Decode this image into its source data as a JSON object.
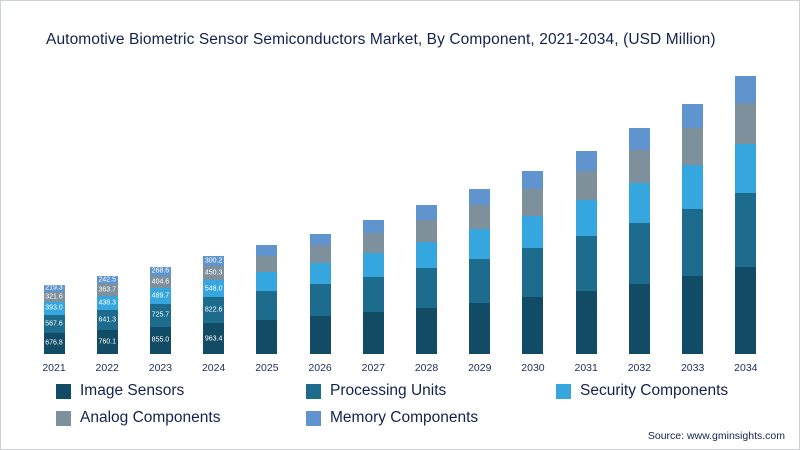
{
  "source": "Source: www.gminsights.com",
  "chart_data": {
    "type": "bar",
    "stacked": true,
    "title": "Automotive Biometric Sensor Semiconductors Market, By Component, 2021-2034, (USD Million)",
    "xlabel": "",
    "ylabel": "USD Million",
    "grid": false,
    "legend_position": "bottom",
    "categories": [
      "2021",
      "2022",
      "2023",
      "2024",
      "2025",
      "2026",
      "2027",
      "2028",
      "2029",
      "2030",
      "2031",
      "2032",
      "2033",
      "2034"
    ],
    "labels_shown_for": [
      "2021",
      "2022",
      "2023",
      "2024"
    ],
    "series": [
      {
        "name": "Image Sensors",
        "color": "#124b66",
        "values": [
          676.8,
          760.1,
          855.0,
          963.4,
          1069,
          1187,
          1318,
          1463,
          1624,
          1802,
          2001,
          2221,
          2465,
          2736
        ]
      },
      {
        "name": "Processing Units",
        "color": "#1d6b8d",
        "values": [
          567.6,
          641.3,
          725.7,
          822.6,
          913,
          1013,
          1125,
          1249,
          1386,
          1539,
          1708,
          1896,
          2104,
          2336
        ]
      },
      {
        "name": "Security Components",
        "color": "#36a7de",
        "values": [
          393.0,
          438.3,
          489.7,
          548.0,
          608,
          675,
          749,
          832,
          923,
          1025,
          1138,
          1263,
          1402,
          1556
        ]
      },
      {
        "name": "Analog Components",
        "color": "#7e909b",
        "values": [
          321.6,
          363.7,
          404.6,
          450.3,
          500,
          555,
          616,
          684,
          759,
          842,
          935,
          1038,
          1152,
          1279
        ]
      },
      {
        "name": "Memory Components",
        "color": "#6094ce",
        "values": [
          219.3,
          242.5,
          268.6,
          300.2,
          333,
          370,
          411,
          456,
          506,
          562,
          624,
          692,
          768,
          853
        ]
      }
    ]
  }
}
